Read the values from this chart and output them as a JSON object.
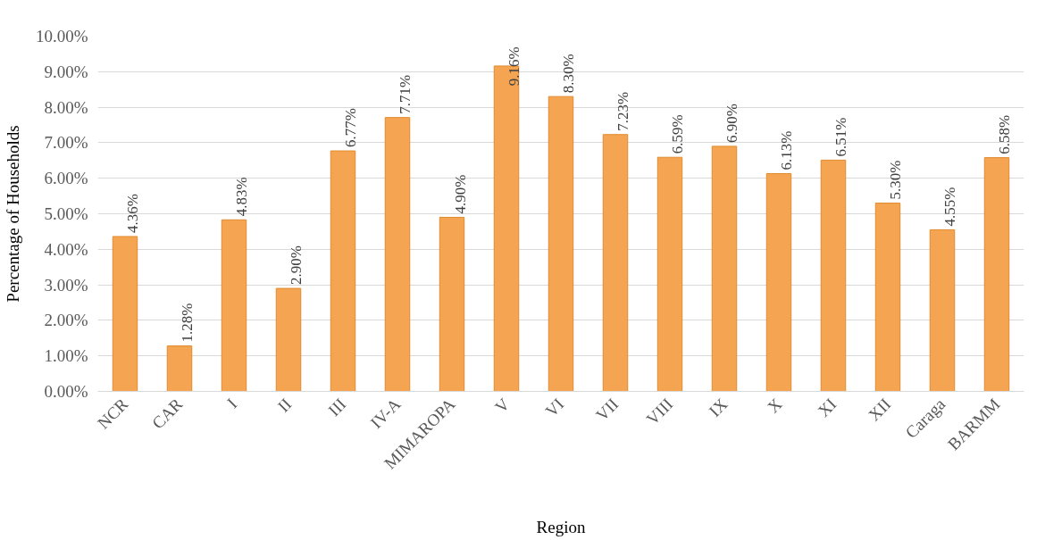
{
  "chart_data": {
    "type": "bar",
    "xlabel": "Region",
    "ylabel": "Percentage of Households",
    "categories": [
      "NCR",
      "CAR",
      "I",
      "II",
      "III",
      "IV-A",
      "MIMAROPA",
      "V",
      "VI",
      "VII",
      "VIII",
      "IX",
      "X",
      "XI",
      "XII",
      "Caraga",
      "BARMM"
    ],
    "values": [
      4.36,
      1.28,
      4.83,
      2.9,
      6.77,
      7.71,
      4.9,
      9.16,
      8.3,
      7.23,
      6.59,
      6.9,
      6.13,
      6.51,
      5.3,
      4.55,
      6.58
    ],
    "value_labels": [
      "4.36%",
      "1.28%",
      "4.83%",
      "2.90%",
      "6.77%",
      "7.71%",
      "4.90%",
      "9.16%",
      "8.30%",
      "7.23%",
      "6.59%",
      "6.90%",
      "6.13%",
      "6.51%",
      "5.30%",
      "4.55%",
      "6.58%"
    ],
    "color": "#f5a552",
    "ylim": [
      0,
      10
    ],
    "yticks": [
      {
        "value": 0,
        "label": "0.00%"
      },
      {
        "value": 1,
        "label": "1.00%"
      },
      {
        "value": 2,
        "label": "2.00%"
      },
      {
        "value": 3,
        "label": "3.00%"
      },
      {
        "value": 4,
        "label": "4.00%"
      },
      {
        "value": 5,
        "label": "5.00%"
      },
      {
        "value": 6,
        "label": "6.00%"
      },
      {
        "value": 7,
        "label": "7.00%"
      },
      {
        "value": 8,
        "label": "8.00%"
      },
      {
        "value": 9,
        "label": "9.00%"
      },
      {
        "value": 10,
        "label": "10.00%"
      }
    ],
    "grid": "y"
  }
}
